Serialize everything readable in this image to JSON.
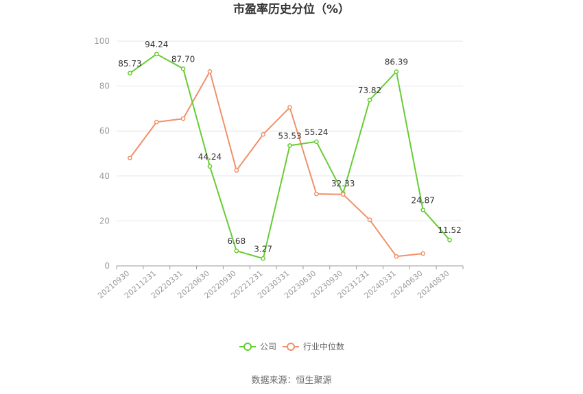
{
  "chart_data": {
    "type": "line",
    "title": "市盈率历史分位（%）",
    "categories": [
      "20210930",
      "20211231",
      "20220331",
      "20220630",
      "20220930",
      "20221231",
      "20230331",
      "20230630",
      "20230930",
      "20231231",
      "20240331",
      "20240630",
      "20240830"
    ],
    "ylim": [
      0,
      100
    ],
    "yticks": [
      0,
      20,
      40,
      60,
      80,
      100
    ],
    "grid": true,
    "legend_position": "bottom",
    "series": [
      {
        "name": "公司",
        "color": "#66cc33",
        "values": [
          85.73,
          94.24,
          87.7,
          44.24,
          6.68,
          3.27,
          53.53,
          55.24,
          32.33,
          73.82,
          86.39,
          24.87,
          11.52
        ],
        "labels": [
          "85.73",
          "94.24",
          "87.70",
          "44.24",
          "6.68",
          "3.27",
          "53.53",
          "55.24",
          "32.33",
          "73.82",
          "86.39",
          "24.87",
          "11.52"
        ]
      },
      {
        "name": "行业中位数",
        "color": "#f09068",
        "values": [
          48,
          64,
          65.5,
          86.5,
          42.5,
          58.5,
          70.5,
          32,
          31.8,
          20.5,
          4.2,
          5.5,
          null
        ]
      }
    ]
  },
  "source": "数据来源：恒生聚源"
}
